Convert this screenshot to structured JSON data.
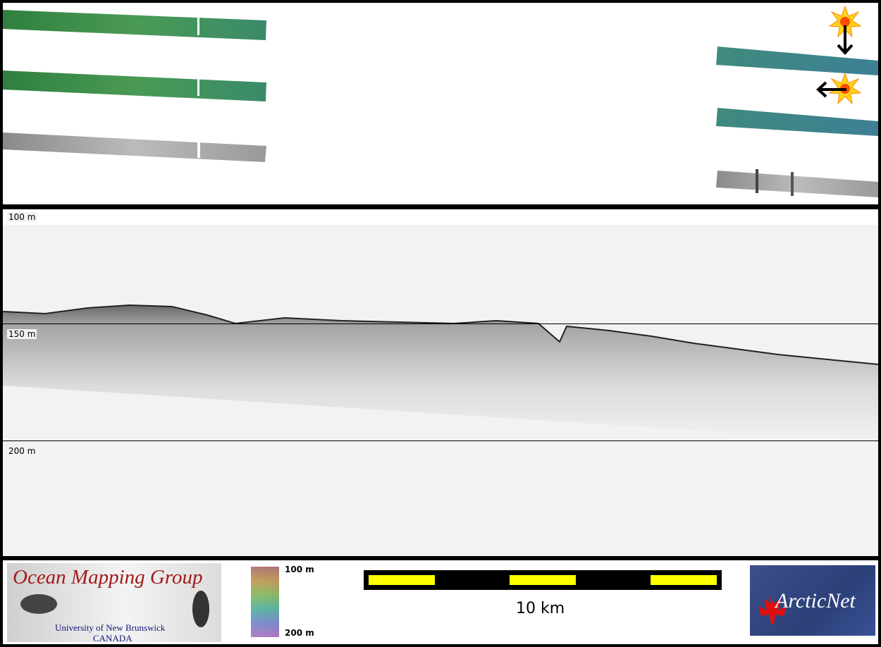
{
  "profile": {
    "depth_labels": [
      "100 m",
      "150 m",
      "200 m"
    ]
  },
  "legend": {
    "colorbar_top": "100 m",
    "colorbar_bottom": "200 m",
    "scale_label": "10 km"
  },
  "logos": {
    "ocean_mapping_group": {
      "title": "Ocean Mapping Group",
      "line1": "University of New Brunswick",
      "line2": "CANADA"
    },
    "arcticnet": "ArcticNet"
  },
  "colors": {
    "bathy_green": "#3f8f55",
    "bathy_teal": "#3e8a8a",
    "scale_yellow": "#ffff00",
    "logo_red": "#a41a1a"
  }
}
